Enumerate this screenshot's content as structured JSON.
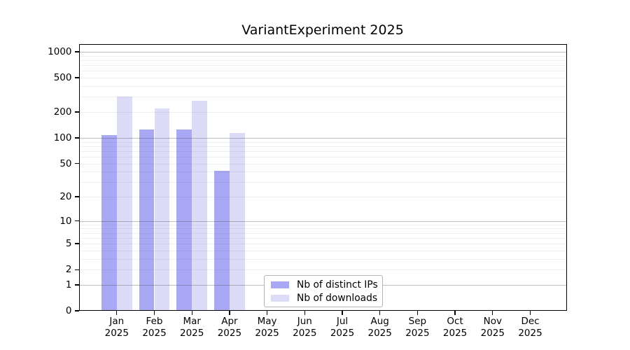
{
  "chart_data": {
    "type": "bar",
    "title": "VariantExperiment 2025",
    "x_months": [
      "Jan",
      "Feb",
      "Mar",
      "Apr",
      "May",
      "Jun",
      "Jul",
      "Aug",
      "Sep",
      "Oct",
      "Nov",
      "Dec"
    ],
    "x_year": "2025",
    "yscale": "log1p",
    "ylim": [
      0,
      1230
    ],
    "yticks": [
      0,
      1,
      2,
      5,
      10,
      20,
      50,
      100,
      200,
      500,
      1000
    ],
    "grid": {
      "major_lines": [
        1,
        10,
        100,
        1000
      ],
      "minor_subs": [
        2,
        3,
        4,
        5,
        6,
        7,
        8,
        9
      ],
      "minor_decades": [
        1,
        10,
        100
      ]
    },
    "series": [
      {
        "key": "distinct-ips",
        "name": "Nb of distinct IPs",
        "color": "#a8a8f4",
        "values": [
          107,
          126,
          126,
          41,
          null,
          null,
          null,
          null,
          null,
          null,
          null,
          null
        ]
      },
      {
        "key": "downloads",
        "name": "Nb of downloads",
        "color": "#dcdcf8",
        "values": [
          300,
          220,
          270,
          115,
          null,
          null,
          null,
          null,
          null,
          null,
          null,
          null
        ]
      }
    ],
    "legend": {
      "position": "lower center",
      "items": [
        "Nb of distinct IPs",
        "Nb of downloads"
      ]
    }
  }
}
